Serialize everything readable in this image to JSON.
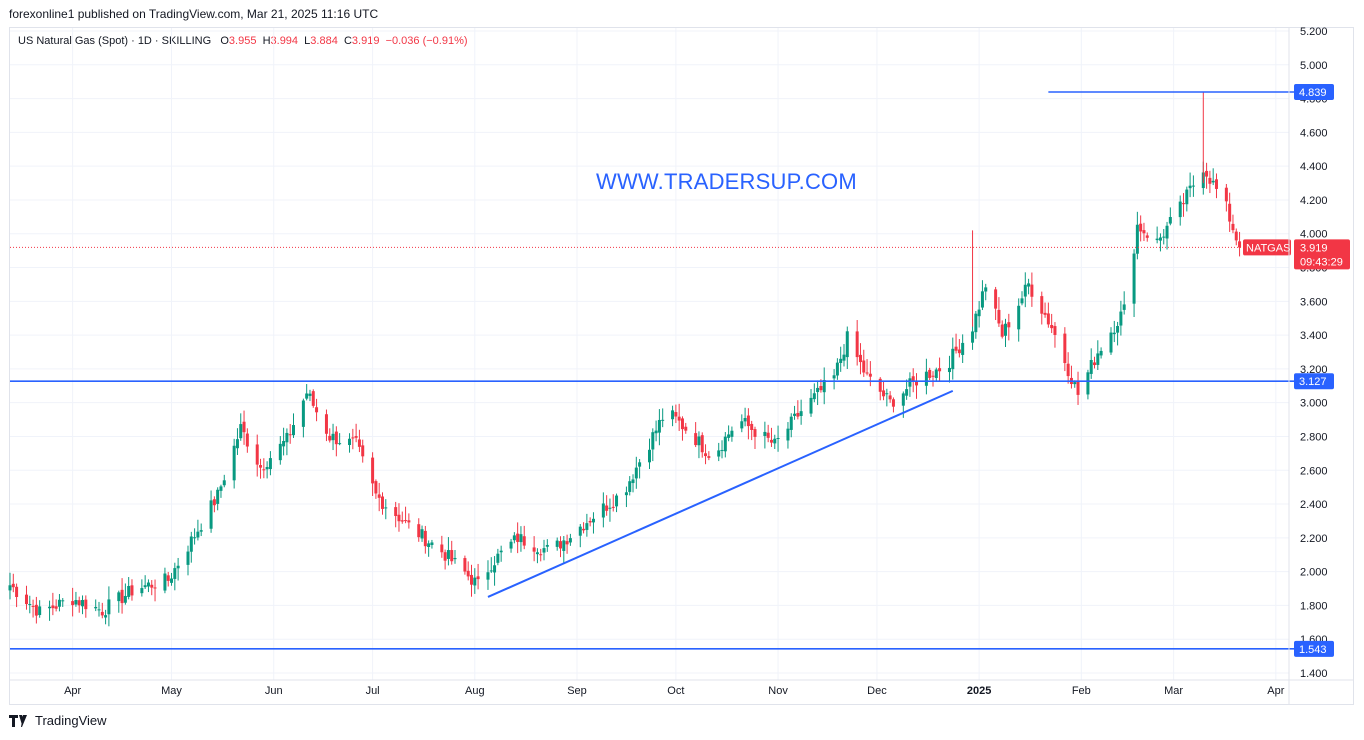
{
  "header": {
    "published": "forexonline1 published on TradingView.com, Mar 21, 2025 11:16 UTC"
  },
  "legend": {
    "symbol": "US Natural Gas (Spot) · 1D · SKILLING",
    "o_label": "O",
    "o_value": "3.955",
    "h_label": "H",
    "h_value": "3.994",
    "l_label": "L",
    "l_value": "3.884",
    "c_label": "C",
    "c_value": "3.919",
    "change": "−0.036 (−0.91%)"
  },
  "watermark": "WWW.TRADERSUP.COM",
  "footer": {
    "brand": "TradingView"
  },
  "colors": {
    "up": "#089981",
    "down": "#f23645",
    "line": "#2962ff",
    "grid": "#f0f3fa",
    "price": "#f23645"
  },
  "chart_data": {
    "type": "candlestick",
    "symbol": "NATGAS",
    "interval": "1D",
    "ylim": [
      1.4,
      5.2
    ],
    "y_ticks": [
      "1.400",
      "1.600",
      "1.800",
      "2.000",
      "2.200",
      "2.400",
      "2.600",
      "2.800",
      "3.000",
      "3.200",
      "3.400",
      "3.600",
      "3.800",
      "4.000",
      "4.200",
      "4.400",
      "4.600",
      "4.800",
      "5.000",
      "5.200"
    ],
    "x_ticks": [
      "Apr",
      "May",
      "Jun",
      "Jul",
      "Aug",
      "Sep",
      "Oct",
      "Nov",
      "Dec",
      "2025",
      "Feb",
      "Mar",
      "Apr"
    ],
    "x_range": [
      "2024-03-13",
      "2025-04-05"
    ],
    "grid": true,
    "last_price": {
      "label": "NATGAS",
      "value": "3.919",
      "countdown": "09:43:29"
    },
    "horizontal_lines": [
      {
        "value": 4.839,
        "label": "4.839",
        "from": "2025-01-22",
        "to": "2025-04-05"
      },
      {
        "value": 3.127,
        "label": "3.127",
        "from": "2024-03-13",
        "to": "2025-04-05"
      },
      {
        "value": 1.543,
        "label": "1.543",
        "from": "2024-03-13",
        "to": "2025-04-05"
      }
    ],
    "trendline": {
      "from": [
        "2024-08-05",
        1.85
      ],
      "to": [
        "2024-12-24",
        3.07
      ]
    },
    "close_anchors": [
      [
        "2024-03-13",
        1.92
      ],
      [
        "2024-03-22",
        1.76
      ],
      [
        "2024-04-01",
        1.84
      ],
      [
        "2024-04-10",
        1.77
      ],
      [
        "2024-04-20",
        1.9
      ],
      [
        "2024-04-30",
        1.95
      ],
      [
        "2024-05-06",
        2.15
      ],
      [
        "2024-05-15",
        2.45
      ],
      [
        "2024-05-22",
        2.85
      ],
      [
        "2024-05-28",
        2.62
      ],
      [
        "2024-06-05",
        2.78
      ],
      [
        "2024-06-11",
        3.06
      ],
      [
        "2024-06-18",
        2.8
      ],
      [
        "2024-06-26",
        2.75
      ],
      [
        "2024-07-02",
        2.45
      ],
      [
        "2024-07-12",
        2.27
      ],
      [
        "2024-07-22",
        2.12
      ],
      [
        "2024-08-02",
        1.92
      ],
      [
        "2024-08-06",
        2.05
      ],
      [
        "2024-08-14",
        2.2
      ],
      [
        "2024-08-24",
        2.12
      ],
      [
        "2024-09-04",
        2.3
      ],
      [
        "2024-09-15",
        2.47
      ],
      [
        "2024-09-28",
        2.95
      ],
      [
        "2024-10-05",
        2.83
      ],
      [
        "2024-10-12",
        2.68
      ],
      [
        "2024-10-20",
        2.9
      ],
      [
        "2024-10-31",
        2.75
      ],
      [
        "2024-11-08",
        2.95
      ],
      [
        "2024-11-18",
        3.15
      ],
      [
        "2024-11-22",
        3.38
      ],
      [
        "2024-11-28",
        3.15
      ],
      [
        "2024-12-05",
        3.0
      ],
      [
        "2024-12-14",
        3.15
      ],
      [
        "2024-12-22",
        3.22
      ],
      [
        "2024-12-30",
        3.45
      ],
      [
        "2025-01-03",
        3.7
      ],
      [
        "2025-01-08",
        3.4
      ],
      [
        "2025-01-16",
        3.7
      ],
      [
        "2025-01-23",
        3.45
      ],
      [
        "2025-01-31",
        3.05
      ],
      [
        "2025-02-06",
        3.3
      ],
      [
        "2025-02-14",
        3.55
      ],
      [
        "2025-02-18",
        4.05
      ],
      [
        "2025-02-24",
        3.95
      ],
      [
        "2025-03-03",
        4.15
      ],
      [
        "2025-03-10",
        4.4
      ],
      [
        "2025-03-17",
        4.15
      ],
      [
        "2025-03-21",
        3.919
      ]
    ]
  }
}
